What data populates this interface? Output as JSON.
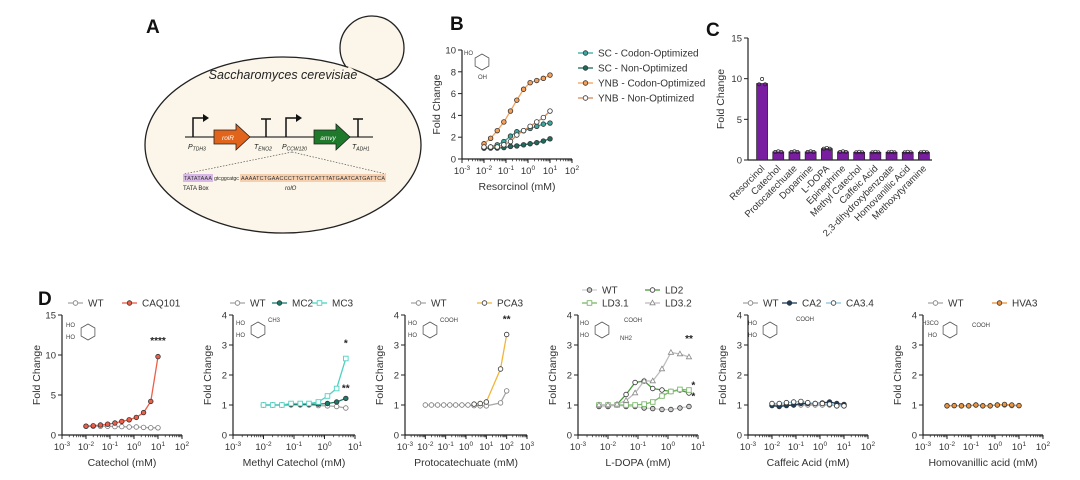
{
  "panel_labels": {
    "a": "A",
    "b": "B",
    "c": "C",
    "d": "D"
  },
  "panel_a": {
    "organism": "Saccharomyces cerevisiae",
    "promoter1": {
      "main": "P",
      "sub": "TDH3"
    },
    "gene1": "rolR",
    "terminator1": {
      "main": "T",
      "sub": "ENO2"
    },
    "promoter2": {
      "main": "P",
      "sub": "CCW120"
    },
    "gene2": "amvy",
    "terminator2": {
      "main": "T",
      "sub": "ADH1"
    },
    "sequence": {
      "tata": "TATATAAA",
      "spacer": "gtcggcatgc",
      "operator": "AAAATCTGAACCCTTGTTCATTTATGAATCATGATTCA"
    },
    "tata_label": "TATA Box",
    "operator_label": "rolO",
    "colors": {
      "cell": "#fbf6e9",
      "gene1": "#e0641c",
      "gene2": "#1e7a2a",
      "tata": "#d9b8e8",
      "operator": "#f6cfae"
    }
  },
  "chart_data": [
    {
      "type": "line",
      "xscale": "log",
      "xlim": [
        0.001,
        100
      ],
      "ylim": [
        0,
        10
      ],
      "xticks": [
        0.001,
        0.01,
        0.1,
        1,
        10,
        100
      ],
      "yticks": [
        0,
        2,
        4,
        6,
        8,
        10
      ],
      "xlabel": "Resorcinol (mM)",
      "ylabel": "Fold Change",
      "legend": "right",
      "structure": {
        "labels": [
          "HO",
          "OH"
        ]
      },
      "series": [
        {
          "name": "SC - Codon-Optimized",
          "color": "#3aa99f",
          "marker": "circle",
          "fill": "filled",
          "x": [
            0.01,
            0.02,
            0.04,
            0.08,
            0.16,
            0.31,
            0.63,
            1.25,
            2.5,
            5,
            10
          ],
          "y": [
            1.0,
            1.1,
            1.3,
            1.6,
            2.1,
            2.5,
            2.6,
            2.8,
            3.0,
            3.2,
            3.3
          ]
        },
        {
          "name": "SC - Non-Optimized",
          "color": "#1f6b5e",
          "marker": "circle",
          "fill": "filled",
          "x": [
            0.01,
            0.02,
            0.04,
            0.08,
            0.16,
            0.31,
            0.63,
            1.25,
            2.5,
            5,
            10
          ],
          "y": [
            1.0,
            1.0,
            1.0,
            1.05,
            1.15,
            1.2,
            1.3,
            1.4,
            1.5,
            1.65,
            1.85
          ]
        },
        {
          "name": "YNB - Codon-Optimized",
          "color": "#f7a05a",
          "marker": "circle",
          "fill": "filled",
          "x": [
            0.01,
            0.02,
            0.04,
            0.08,
            0.16,
            0.31,
            0.63,
            1.25,
            2.5,
            5,
            10
          ],
          "y": [
            1.4,
            1.9,
            2.6,
            3.4,
            4.4,
            5.4,
            6.4,
            7.0,
            7.2,
            7.4,
            7.7
          ]
        },
        {
          "name": "YNB - Non-Optimized",
          "color": "#d9895a",
          "marker": "circle",
          "fill": "open",
          "x": [
            0.01,
            0.02,
            0.04,
            0.08,
            0.16,
            0.31,
            0.63,
            1.25,
            2.5,
            5,
            10
          ],
          "y": [
            1.1,
            1.1,
            1.1,
            1.3,
            1.6,
            2.2,
            2.6,
            3.0,
            3.4,
            3.8,
            4.4
          ]
        }
      ],
      "annotations": []
    },
    {
      "type": "bar",
      "ylim": [
        0,
        15
      ],
      "yticks": [
        0,
        5,
        10,
        15
      ],
      "ylabel": "Fold Change",
      "color": "#7a1ea1",
      "categories": [
        "Resorcinol",
        "Catechol",
        "Protocatechuate",
        "Dopamine",
        "L-DOPA",
        "Epinephrine",
        "Methyl Catechol",
        "Caffeic Acid",
        "2,3-dihydroxybenzoate",
        "Homovanillic Acid",
        "Methoxytyramine"
      ],
      "values": [
        9.4,
        1.0,
        1.0,
        1.0,
        1.4,
        1.0,
        0.95,
        0.95,
        0.95,
        0.95,
        0.95
      ]
    },
    {
      "type": "line",
      "xscale": "log",
      "xlim": [
        0.001,
        100
      ],
      "ylim": [
        0,
        15
      ],
      "xticks": [
        0.001,
        0.01,
        0.1,
        1,
        10,
        100
      ],
      "yticks": [
        0,
        5,
        10,
        15
      ],
      "xlabel": "Catechol (mM)",
      "ylabel": "Fold Change",
      "legend": "top",
      "structure": {
        "labels": [
          "HO",
          "HO"
        ]
      },
      "series": [
        {
          "name": "WT",
          "color": "#a8a8a8",
          "marker": "circle",
          "fill": "open",
          "x": [
            0.01,
            0.02,
            0.04,
            0.08,
            0.16,
            0.31,
            0.63,
            1.25,
            2.5,
            5,
            10
          ],
          "y": [
            1.1,
            1.1,
            1.1,
            1.1,
            1.05,
            1.05,
            1.0,
            1.0,
            0.95,
            0.9,
            0.9
          ]
        },
        {
          "name": "CAQ101",
          "color": "#ec5f49",
          "marker": "circle",
          "fill": "filled",
          "x": [
            0.01,
            0.02,
            0.04,
            0.08,
            0.16,
            0.31,
            0.63,
            1.25,
            2.5,
            5,
            10
          ],
          "y": [
            1.1,
            1.15,
            1.25,
            1.35,
            1.5,
            1.7,
            1.9,
            2.2,
            2.8,
            4.2,
            9.8
          ]
        }
      ],
      "annotations": [
        {
          "text": "****",
          "x": 10,
          "y": 11.4
        }
      ]
    },
    {
      "type": "line",
      "xscale": "log",
      "xlim": [
        0.001,
        10
      ],
      "ylim": [
        0,
        4
      ],
      "xticks": [
        0.001,
        0.01,
        0.1,
        1,
        10
      ],
      "yticks": [
        0,
        1,
        2,
        3,
        4
      ],
      "xlabel": "Methyl Catechol (mM)",
      "ylabel": "Fold Change",
      "legend": "top",
      "structure": {
        "labels": [
          "HO",
          "HO",
          "CH3"
        ]
      },
      "series": [
        {
          "name": "WT",
          "color": "#a8a8a8",
          "marker": "circle",
          "fill": "open",
          "x": [
            0.01,
            0.02,
            0.04,
            0.08,
            0.16,
            0.31,
            0.63,
            1.25,
            2.5,
            5
          ],
          "y": [
            1,
            1,
            1,
            1,
            1,
            1,
            0.98,
            0.97,
            0.95,
            0.9
          ]
        },
        {
          "name": "MC2",
          "color": "#1b7a6b",
          "marker": "circle",
          "fill": "filled",
          "x": [
            0.01,
            0.02,
            0.04,
            0.08,
            0.16,
            0.31,
            0.63,
            1.25,
            2.5,
            5
          ],
          "y": [
            1,
            1,
            1,
            1.02,
            1.02,
            1.02,
            1.03,
            1.05,
            1.1,
            1.22
          ]
        },
        {
          "name": "MC3",
          "color": "#4fd1c2",
          "marker": "square",
          "fill": "open",
          "x": [
            0.01,
            0.02,
            0.04,
            0.08,
            0.16,
            0.31,
            0.63,
            1.25,
            2.5,
            5
          ],
          "y": [
            1,
            1,
            1,
            1.05,
            1.05,
            1.05,
            1.1,
            1.3,
            1.55,
            2.55
          ]
        }
      ],
      "annotations": [
        {
          "text": "*",
          "x": 5,
          "y": 2.95
        },
        {
          "text": "**",
          "x": 5,
          "y": 1.45
        }
      ]
    },
    {
      "type": "line",
      "xscale": "log",
      "xlim": [
        0.001,
        1000
      ],
      "ylim": [
        0,
        4
      ],
      "xticks": [
        0.001,
        0.01,
        0.1,
        1,
        10,
        100,
        1000
      ],
      "yticks": [
        0,
        1,
        2,
        3,
        4
      ],
      "xlabel": "Protocatechuate (mM)",
      "ylabel": "Fold Change",
      "legend": "top",
      "structure": {
        "labels": [
          "HO",
          "HO",
          "COOH"
        ]
      },
      "series": [
        {
          "name": "WT",
          "color": "#a8a8a8",
          "marker": "circle",
          "fill": "open",
          "x": [
            0.01,
            0.02,
            0.04,
            0.08,
            0.16,
            0.31,
            0.63,
            1.25,
            2.5,
            5,
            10,
            50,
            100
          ],
          "y": [
            1,
            1,
            1,
            1,
            1,
            1,
            1,
            1,
            0.98,
            0.97,
            0.97,
            1.07,
            1.47
          ]
        },
        {
          "name": "PCA3",
          "color": "#f2b53a",
          "marker": "circle",
          "fill": "open",
          "x": [
            2.5,
            5,
            10,
            50,
            100
          ],
          "y": [
            1.03,
            1.05,
            1.1,
            2.2,
            3.35
          ]
        }
      ],
      "annotations": [
        {
          "text": "**",
          "x": 100,
          "y": 3.75
        }
      ]
    },
    {
      "type": "line",
      "xscale": "log",
      "xlim": [
        0.001,
        10
      ],
      "ylim": [
        0,
        4
      ],
      "xticks": [
        0.001,
        0.01,
        0.1,
        1,
        10
      ],
      "yticks": [
        0,
        1,
        2,
        3,
        4
      ],
      "xlabel": "L-DOPA (mM)",
      "ylabel": "Fold Change",
      "legend": "top",
      "structure": {
        "labels": [
          "HO",
          "HO",
          "COOH",
          "NH2"
        ]
      },
      "series": [
        {
          "name": "WT",
          "color": "#cfcfcf",
          "marker": "circle",
          "fill": "filled",
          "x": [
            0.005,
            0.01,
            0.02,
            0.04,
            0.08,
            0.16,
            0.31,
            0.63,
            1.25,
            2.5,
            5
          ],
          "y": [
            0.95,
            0.95,
            1.0,
            0.95,
            0.95,
            0.9,
            0.88,
            0.85,
            0.85,
            0.9,
            0.95
          ]
        },
        {
          "name": "LD2",
          "color": "#4a9a3a",
          "marker": "circle",
          "fill": "open",
          "x": [
            0.005,
            0.01,
            0.02,
            0.04,
            0.08,
            0.16,
            0.31,
            0.63,
            1.25,
            2.5,
            5
          ],
          "y": [
            1.0,
            1.0,
            1.02,
            1.35,
            1.75,
            1.8,
            1.55,
            1.5,
            1.45,
            1.5,
            1.4
          ]
        },
        {
          "name": "LD3.1",
          "color": "#7ab86a",
          "marker": "square",
          "fill": "open",
          "x": [
            0.005,
            0.01,
            0.02,
            0.04,
            0.08,
            0.16,
            0.31,
            0.63,
            1.25,
            2.5,
            5
          ],
          "y": [
            1.0,
            1.0,
            1.0,
            1.0,
            1.0,
            1.03,
            1.1,
            1.3,
            1.45,
            1.52,
            1.5
          ]
        },
        {
          "name": "LD3.2",
          "color": "#bdbdbd",
          "marker": "triangle",
          "fill": "open",
          "x": [
            0.005,
            0.01,
            0.02,
            0.04,
            0.08,
            0.16,
            0.31,
            0.63,
            1.25,
            2.5,
            5
          ],
          "y": [
            1.0,
            1.0,
            1.02,
            1.15,
            1.4,
            1.8,
            1.8,
            2.2,
            2.75,
            2.7,
            2.6
          ]
        }
      ],
      "annotations": [
        {
          "text": "**",
          "x": 5,
          "y": 3.1
        },
        {
          "text": "*",
          "x": 7,
          "y": 1.55
        },
        {
          "text": "*",
          "x": 7,
          "y": 1.32
        }
      ]
    },
    {
      "type": "line",
      "xscale": "log",
      "xlim": [
        0.001,
        100
      ],
      "ylim": [
        0,
        4
      ],
      "xticks": [
        0.001,
        0.01,
        0.1,
        1,
        10,
        100
      ],
      "yticks": [
        0,
        1,
        2,
        3,
        4
      ],
      "xlabel": "Caffeic Acid (mM)",
      "ylabel": "Fold Change",
      "legend": "top",
      "structure": {
        "labels": [
          "HO",
          "HO",
          "COOH"
        ]
      },
      "series": [
        {
          "name": "WT",
          "color": "#a8a8a8",
          "marker": "circle",
          "fill": "open",
          "x": [
            0.01,
            0.02,
            0.04,
            0.08,
            0.16,
            0.31,
            0.63,
            1.25,
            2.5,
            5,
            10
          ],
          "y": [
            1.0,
            1.0,
            1.0,
            1.0,
            1.0,
            1.0,
            1.0,
            1.0,
            1.0,
            0.97,
            0.97
          ]
        },
        {
          "name": "CA2",
          "color": "#1d3d5c",
          "marker": "circle",
          "fill": "filled",
          "x": [
            0.01,
            0.02,
            0.04,
            0.08,
            0.16,
            0.31,
            0.63,
            1.25,
            2.5,
            5,
            10
          ],
          "y": [
            0.98,
            0.95,
            0.98,
            1.0,
            1.05,
            1.05,
            1.05,
            1.07,
            1.1,
            1.05,
            1.02
          ]
        },
        {
          "name": "CA3.4",
          "color": "#8cc4e0",
          "marker": "circle",
          "fill": "open",
          "x": [
            0.01,
            0.02,
            0.04,
            0.08,
            0.16,
            0.31,
            0.63,
            1.25,
            2.5,
            5,
            10
          ],
          "y": [
            1.05,
            1.05,
            1.08,
            1.1,
            1.12,
            1.08,
            1.05,
            1.05,
            1.03,
            0.97,
            0.97
          ]
        }
      ],
      "annotations": []
    },
    {
      "type": "line",
      "xscale": "log",
      "xlim": [
        0.001,
        100
      ],
      "ylim": [
        0,
        4
      ],
      "xticks": [
        0.001,
        0.01,
        0.1,
        1,
        10,
        100
      ],
      "yticks": [
        0,
        1,
        2,
        3,
        4
      ],
      "xlabel": "Homovanillic acid (mM)",
      "ylabel": "Fold Change",
      "legend": "top",
      "structure": {
        "labels": [
          "H3CO",
          "HO",
          "COOH"
        ]
      },
      "series": [
        {
          "name": "WT",
          "color": "#a8a8a8",
          "marker": "circle",
          "fill": "open",
          "x": [
            0.01,
            0.02,
            0.04,
            0.08,
            0.16,
            0.31,
            0.63,
            1.25,
            2.5,
            5,
            10
          ],
          "y": [
            0.98,
            0.98,
            0.98,
            0.98,
            1.0,
            0.98,
            0.98,
            1.0,
            1.0,
            0.98,
            0.98
          ]
        },
        {
          "name": "HVA3",
          "color": "#ec9440",
          "marker": "circle",
          "fill": "filled",
          "x": [
            0.01,
            0.02,
            0.04,
            0.08,
            0.16,
            0.31,
            0.63,
            1.25,
            2.5,
            5,
            10
          ],
          "y": [
            0.97,
            0.98,
            0.97,
            0.97,
            1.0,
            0.97,
            0.97,
            1.0,
            1.02,
            1.0,
            0.98
          ]
        }
      ],
      "annotations": []
    }
  ]
}
